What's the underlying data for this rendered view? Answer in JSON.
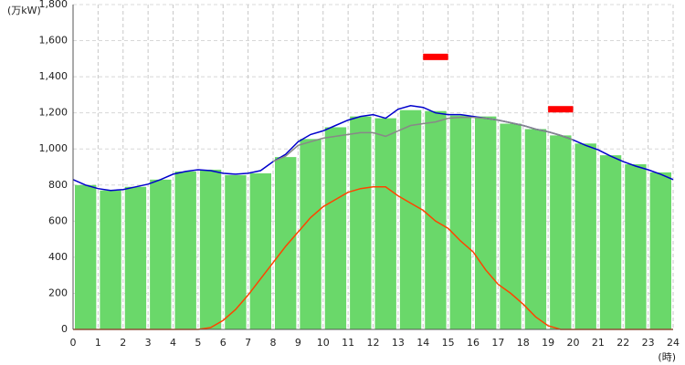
{
  "chart_data": {
    "type": "bar",
    "y_unit_label": "(万kW)",
    "x_unit_label": "(時)",
    "xlim": [
      0,
      24
    ],
    "xticks": [
      0,
      1,
      2,
      3,
      4,
      5,
      6,
      7,
      8,
      9,
      10,
      11,
      12,
      13,
      14,
      15,
      16,
      17,
      18,
      19,
      20,
      21,
      22,
      23,
      24
    ],
    "ylim": [
      0,
      1800
    ],
    "yticks": [
      0,
      200,
      400,
      600,
      800,
      {
        "value": 1000,
        "label": "1,000"
      },
      {
        "value": 1200,
        "label": "1,200"
      },
      {
        "value": 1400,
        "label": "1,400"
      },
      {
        "value": 1600,
        "label": "1,600"
      },
      {
        "value": 1800,
        "label": "1,800"
      }
    ],
    "grid": true,
    "bars": {
      "color": "#6ad86a",
      "values": [
        800,
        770,
        790,
        830,
        875,
        885,
        855,
        865,
        955,
        1055,
        1120,
        1180,
        1170,
        1215,
        1210,
        1185,
        1180,
        1140,
        1110,
        1075,
        1030,
        965,
        915,
        870
      ]
    },
    "x": [
      0,
      0.5,
      1,
      1.5,
      2,
      2.5,
      3,
      3.5,
      4,
      4.5,
      5,
      5.5,
      6,
      6.5,
      7,
      7.5,
      8,
      8.5,
      9,
      9.5,
      10,
      10.5,
      11,
      11.5,
      12,
      12.5,
      13,
      13.5,
      14,
      14.5,
      15,
      15.5,
      16,
      16.5,
      17,
      17.5,
      18,
      18.5,
      19,
      19.5,
      20,
      20.5,
      21,
      21.5,
      22,
      22.5,
      23,
      23.5,
      24
    ],
    "series": [
      {
        "color": "#0000cc",
        "values": [
          830,
          800,
          780,
          770,
          775,
          790,
          805,
          830,
          860,
          875,
          885,
          880,
          865,
          860,
          865,
          880,
          930,
          970,
          1040,
          1080,
          1100,
          1130,
          1160,
          1180,
          1190,
          1170,
          1220,
          1240,
          1230,
          1200,
          1190,
          1190,
          1180,
          1170,
          1160,
          1145,
          1130,
          1110,
          1095,
          1075,
          1050,
          1020,
          995,
          960,
          930,
          905,
          885,
          860,
          830
        ]
      },
      {
        "color": "#888888",
        "values": [
          null,
          null,
          null,
          null,
          null,
          null,
          null,
          null,
          null,
          null,
          null,
          null,
          null,
          null,
          null,
          null,
          930,
          960,
          1020,
          1040,
          1060,
          1070,
          1080,
          1090,
          1090,
          1070,
          1100,
          1130,
          1140,
          1150,
          1170,
          1175,
          1175,
          1170,
          1160,
          1145,
          1130,
          1110,
          1095,
          1075,
          1050,
          null,
          null,
          null,
          null,
          null,
          null,
          null,
          null
        ]
      },
      {
        "color": "#ff4400",
        "values": [
          0,
          0,
          0,
          0,
          0,
          0,
          0,
          0,
          0,
          0,
          0,
          10,
          50,
          110,
          190,
          280,
          370,
          460,
          540,
          620,
          680,
          720,
          760,
          780,
          790,
          790,
          740,
          700,
          660,
          600,
          560,
          490,
          430,
          330,
          250,
          200,
          140,
          70,
          20,
          0,
          0,
          0,
          0,
          0,
          0,
          0,
          0,
          0,
          0
        ]
      }
    ],
    "peak_marks": [
      {
        "from": 14,
        "to": 15,
        "value": 1510,
        "color": "#ff0000"
      },
      {
        "from": 19,
        "to": 20,
        "value": 1220,
        "color": "#ff0000"
      }
    ]
  }
}
